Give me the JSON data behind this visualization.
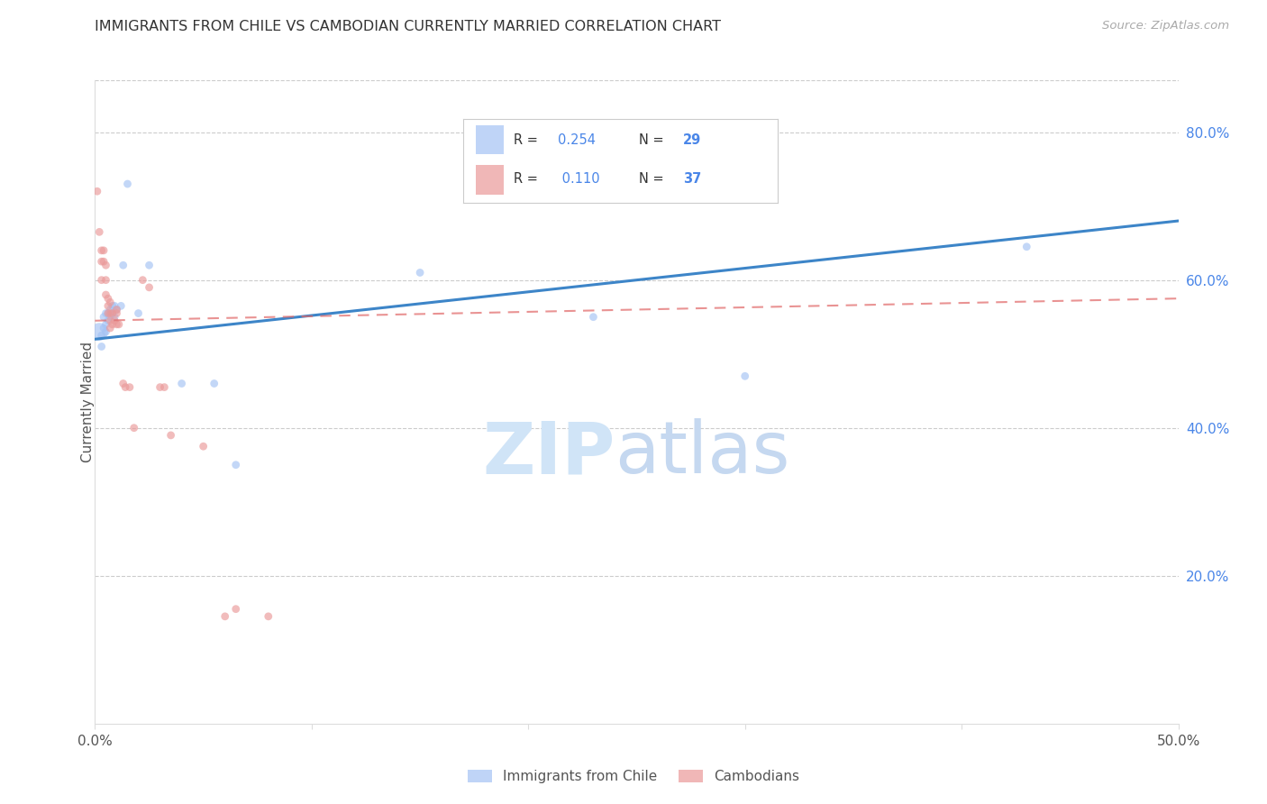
{
  "title": "IMMIGRANTS FROM CHILE VS CAMBODIAN CURRENTLY MARRIED CORRELATION CHART",
  "source": "Source: ZipAtlas.com",
  "ylabel": "Currently Married",
  "x_min": 0.0,
  "x_max": 0.5,
  "y_min": 0.0,
  "y_max": 0.87,
  "y_ticks_right": [
    0.2,
    0.4,
    0.6,
    0.8
  ],
  "y_tick_labels_right": [
    "20.0%",
    "40.0%",
    "60.0%",
    "80.0%"
  ],
  "legend_r1": "R = 0.254",
  "legend_n1": "N = 29",
  "legend_r2": "R =  0.110",
  "legend_n2": "N = 37",
  "blue_color": "#a4c2f4",
  "pink_color": "#ea9999",
  "blue_line_color": "#3d85c8",
  "pink_line_color": "#e06666",
  "blue_scatter_x": [
    0.002,
    0.003,
    0.003,
    0.004,
    0.004,
    0.005,
    0.005,
    0.005,
    0.006,
    0.006,
    0.007,
    0.007,
    0.008,
    0.008,
    0.009,
    0.009,
    0.01,
    0.012,
    0.013,
    0.015,
    0.02,
    0.025,
    0.04,
    0.055,
    0.065,
    0.15,
    0.23,
    0.3,
    0.43
  ],
  "blue_scatter_y": [
    0.53,
    0.525,
    0.51,
    0.55,
    0.535,
    0.555,
    0.54,
    0.53,
    0.555,
    0.545,
    0.56,
    0.55,
    0.565,
    0.555,
    0.565,
    0.55,
    0.56,
    0.565,
    0.62,
    0.73,
    0.555,
    0.62,
    0.46,
    0.46,
    0.35,
    0.61,
    0.55,
    0.47,
    0.645
  ],
  "blue_scatter_sizes": [
    200,
    40,
    40,
    40,
    40,
    40,
    40,
    40,
    40,
    40,
    40,
    40,
    40,
    40,
    40,
    40,
    40,
    40,
    40,
    40,
    40,
    40,
    40,
    40,
    40,
    40,
    40,
    40,
    40
  ],
  "pink_scatter_x": [
    0.001,
    0.002,
    0.003,
    0.003,
    0.003,
    0.004,
    0.004,
    0.005,
    0.005,
    0.005,
    0.006,
    0.006,
    0.006,
    0.007,
    0.007,
    0.007,
    0.007,
    0.008,
    0.008,
    0.009,
    0.01,
    0.01,
    0.01,
    0.011,
    0.013,
    0.014,
    0.016,
    0.018,
    0.022,
    0.025,
    0.03,
    0.032,
    0.035,
    0.05,
    0.06,
    0.065,
    0.08
  ],
  "pink_scatter_y": [
    0.72,
    0.665,
    0.64,
    0.625,
    0.6,
    0.64,
    0.625,
    0.62,
    0.6,
    0.58,
    0.575,
    0.565,
    0.555,
    0.57,
    0.555,
    0.545,
    0.535,
    0.555,
    0.54,
    0.545,
    0.56,
    0.555,
    0.54,
    0.54,
    0.46,
    0.455,
    0.455,
    0.4,
    0.6,
    0.59,
    0.455,
    0.455,
    0.39,
    0.375,
    0.145,
    0.155,
    0.145
  ],
  "pink_scatter_sizes": [
    40,
    40,
    40,
    40,
    40,
    40,
    40,
    40,
    40,
    40,
    40,
    40,
    40,
    40,
    40,
    40,
    40,
    40,
    40,
    40,
    40,
    40,
    40,
    40,
    40,
    40,
    40,
    40,
    40,
    40,
    40,
    40,
    40,
    40,
    40,
    40,
    40
  ],
  "blue_line_x": [
    0.0,
    0.5
  ],
  "blue_line_y": [
    0.52,
    0.68
  ],
  "pink_line_x": [
    0.0,
    0.5
  ],
  "pink_line_y": [
    0.545,
    0.575
  ],
  "watermark_zip_color": "#d0e4f7",
  "watermark_atlas_color": "#c5d8f0",
  "axis_label_color": "#4a86e8",
  "legend_r_color": "#333333",
  "legend_val_color": "#4a86e8",
  "legend_n_color": "#4a86e8"
}
